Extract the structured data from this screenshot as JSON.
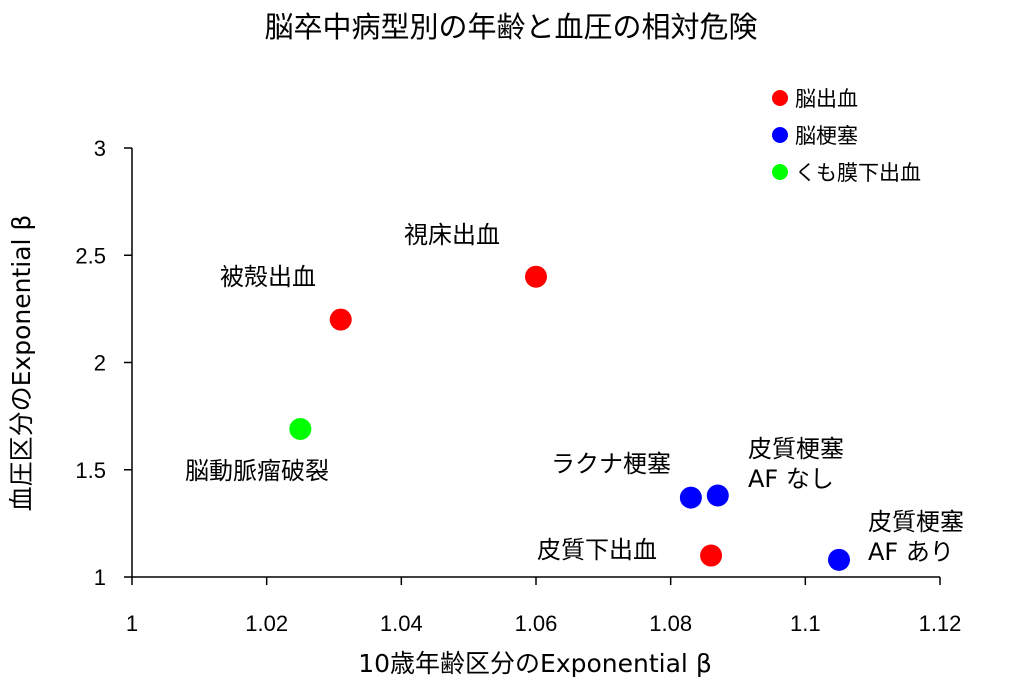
{
  "chart_data": {
    "type": "scatter",
    "title": "脳卒中病型別の年齢と血圧の相対危険",
    "xlabel": "10歳年齢区分のExponential β",
    "ylabel": "血圧区分のExponential β",
    "xlim": [
      1,
      1.12
    ],
    "ylim": [
      1,
      3
    ],
    "x_ticks": [
      "1",
      "1.02",
      "1.04",
      "1.06",
      "1.08",
      "1.1",
      "1.12"
    ],
    "y_ticks": [
      "1",
      "1.5",
      "2",
      "2.5",
      "3"
    ],
    "grid": false,
    "legend_position": "top-right",
    "series": [
      {
        "name": "脳出血",
        "color": "#ff0000",
        "points": [
          {
            "label": "被殻出血",
            "x": 1.031,
            "y": 2.2
          },
          {
            "label": "視床出血",
            "x": 1.06,
            "y": 2.4
          },
          {
            "label": "皮質下出血",
            "x": 1.086,
            "y": 1.1
          }
        ]
      },
      {
        "name": "脳梗塞",
        "color": "#0000ff",
        "points": [
          {
            "label": "ラクナ梗塞",
            "x": 1.083,
            "y": 1.37
          },
          {
            "label": "皮質梗塞 AF なし",
            "x": 1.087,
            "y": 1.38
          },
          {
            "label": "皮質梗塞 AF あり",
            "x": 1.105,
            "y": 1.08
          }
        ]
      },
      {
        "name": "くも膜下出血",
        "color": "#00ff00",
        "points": [
          {
            "label": "脳動脈瘤破裂",
            "x": 1.025,
            "y": 1.69
          }
        ]
      }
    ],
    "annotations": {
      "putamen": "被殻出血",
      "thalamus": "視床出血",
      "subcortical": "皮質下出血",
      "aneurysm": "脳動脈瘤破裂",
      "lacunar": "ラクナ梗塞",
      "cortical_no_af_1": "皮質梗塞",
      "cortical_no_af_2": "AF なし",
      "cortical_af_1": "皮質梗塞",
      "cortical_af_2": "AF あり"
    }
  }
}
